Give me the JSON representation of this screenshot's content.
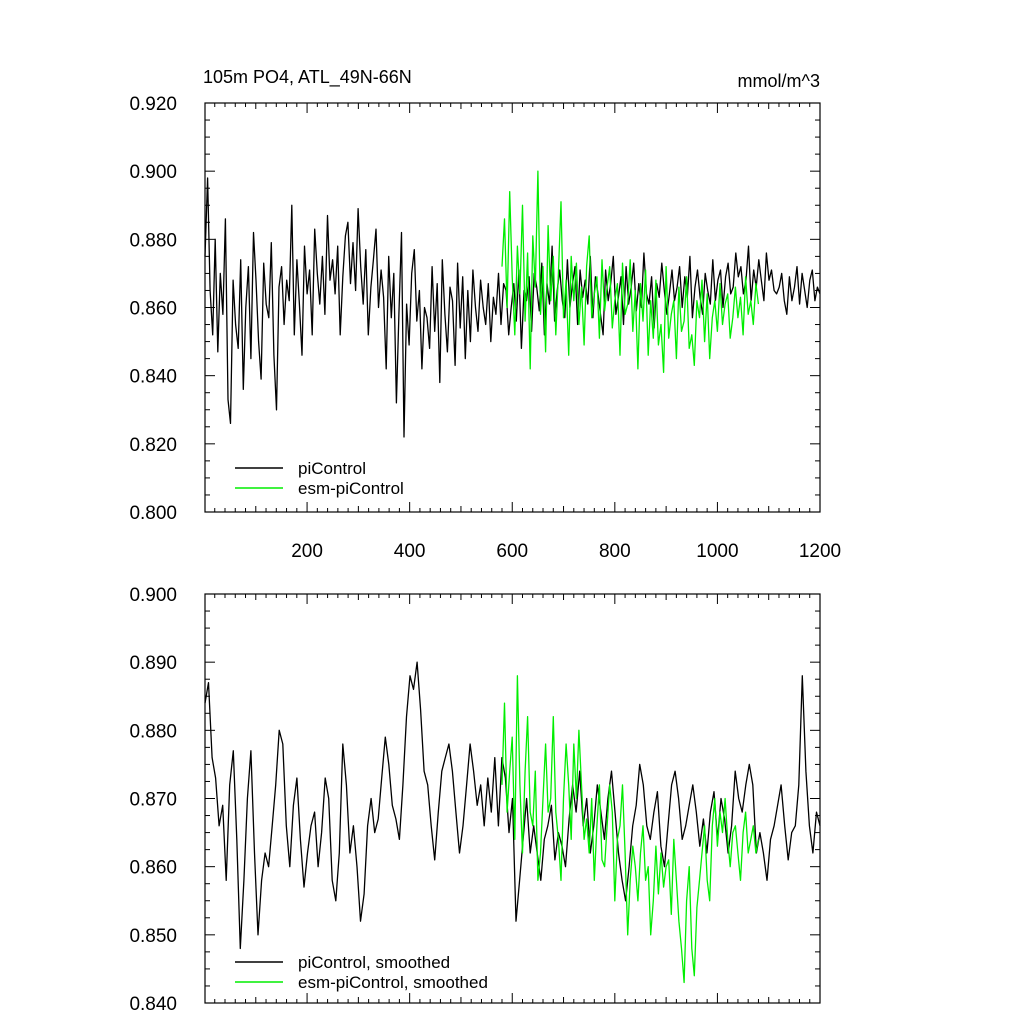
{
  "chart_data": [
    {
      "type": "line",
      "title": "105m PO4, ATL_49N-66N",
      "units": "mmol/m^3",
      "xlim": [
        1,
        1200
      ],
      "ylim": [
        0.8,
        0.92
      ],
      "xticks": [
        200,
        400,
        600,
        800,
        1000,
        1200
      ],
      "xtick_labels": [
        "200",
        "400",
        "600",
        "800",
        "1000",
        "1200"
      ],
      "yticks": [
        0.8,
        0.82,
        0.84,
        0.86,
        0.88,
        0.9,
        0.92
      ],
      "ytick_labels": [
        "0.800",
        "0.820",
        "0.840",
        "0.860",
        "0.880",
        "0.900",
        "0.920"
      ],
      "grid": false,
      "legend_position": "bottom-left",
      "series": [
        {
          "name": "piControl",
          "color": "#000000",
          "x_start": 1,
          "x_end": 1200,
          "values": [
            0.875,
            0.898,
            0.865,
            0.852,
            0.88,
            0.847,
            0.87,
            0.858,
            0.886,
            0.833,
            0.826,
            0.868,
            0.855,
            0.848,
            0.874,
            0.836,
            0.86,
            0.872,
            0.845,
            0.882,
            0.868,
            0.85,
            0.839,
            0.873,
            0.861,
            0.857,
            0.879,
            0.846,
            0.83,
            0.866,
            0.872,
            0.855,
            0.868,
            0.862,
            0.89,
            0.852,
            0.874,
            0.861,
            0.846,
            0.878,
            0.864,
            0.871,
            0.852,
            0.883,
            0.87,
            0.861,
            0.875,
            0.858,
            0.887,
            0.868,
            0.874,
            0.864,
            0.878,
            0.852,
            0.869,
            0.881,
            0.885,
            0.867,
            0.879,
            0.865,
            0.889,
            0.872,
            0.861,
            0.877,
            0.852,
            0.866,
            0.874,
            0.883,
            0.86,
            0.871,
            0.863,
            0.842,
            0.875,
            0.857,
            0.87,
            0.832,
            0.858,
            0.882,
            0.822,
            0.861,
            0.849,
            0.87,
            0.877,
            0.856,
            0.865,
            0.842,
            0.86,
            0.857,
            0.848,
            0.872,
            0.853,
            0.867,
            0.838,
            0.874,
            0.858,
            0.847,
            0.866,
            0.862,
            0.843,
            0.873,
            0.854,
            0.869,
            0.845,
            0.865,
            0.85,
            0.871,
            0.86,
            0.853,
            0.868,
            0.86,
            0.855,
            0.867,
            0.85,
            0.863,
            0.858,
            0.87,
            0.855,
            0.867,
            0.865,
            0.852,
            0.86,
            0.867,
            0.856,
            0.871,
            0.848,
            0.865,
            0.862,
            0.869,
            0.853,
            0.87,
            0.866,
            0.859,
            0.873,
            0.852,
            0.867,
            0.861,
            0.878,
            0.856,
            0.865,
            0.871,
            0.862,
            0.857,
            0.874,
            0.86,
            0.867,
            0.872,
            0.855,
            0.871,
            0.863,
            0.868,
            0.861,
            0.875,
            0.857,
            0.869,
            0.864,
            0.858,
            0.852,
            0.871,
            0.862,
            0.867,
            0.875,
            0.858,
            0.863,
            0.869,
            0.855,
            0.872,
            0.861,
            0.866,
            0.873,
            0.859,
            0.867,
            0.86,
            0.876,
            0.864,
            0.861,
            0.869,
            0.854,
            0.867,
            0.863,
            0.873,
            0.865,
            0.858,
            0.864,
            0.871,
            0.862,
            0.866,
            0.872,
            0.86,
            0.869,
            0.863,
            0.875,
            0.857,
            0.866,
            0.871,
            0.863,
            0.858,
            0.87,
            0.865,
            0.861,
            0.874,
            0.862,
            0.868,
            0.871,
            0.86,
            0.869,
            0.873,
            0.864,
            0.866,
            0.876,
            0.869,
            0.872,
            0.864,
            0.868,
            0.878,
            0.862,
            0.871,
            0.866,
            0.874,
            0.868,
            0.862,
            0.876,
            0.868,
            0.871,
            0.865,
            0.864,
            0.866,
            0.87,
            0.862,
            0.858,
            0.869,
            0.862,
            0.866,
            0.872,
            0.861,
            0.87,
            0.865,
            0.86,
            0.868,
            0.871,
            0.862,
            0.866,
            0.864
          ]
        },
        {
          "name": "esm-piControl",
          "color": "#00ee00",
          "x_start": 580,
          "x_end": 1080,
          "values": [
            0.872,
            0.886,
            0.86,
            0.894,
            0.869,
            0.852,
            0.878,
            0.864,
            0.89,
            0.856,
            0.876,
            0.842,
            0.881,
            0.866,
            0.9,
            0.858,
            0.872,
            0.847,
            0.884,
            0.862,
            0.875,
            0.852,
            0.87,
            0.891,
            0.857,
            0.868,
            0.846,
            0.875,
            0.862,
            0.873,
            0.855,
            0.866,
            0.849,
            0.872,
            0.881,
            0.857,
            0.864,
            0.869,
            0.851,
            0.874,
            0.859,
            0.866,
            0.872,
            0.854,
            0.862,
            0.867,
            0.846,
            0.873,
            0.858,
            0.861,
            0.874,
            0.853,
            0.865,
            0.842,
            0.867,
            0.856,
            0.871,
            0.846,
            0.862,
            0.851,
            0.868,
            0.849,
            0.855,
            0.841,
            0.872,
            0.851,
            0.858,
            0.862,
            0.845,
            0.866,
            0.853,
            0.856,
            0.869,
            0.848,
            0.852,
            0.843,
            0.862,
            0.857,
            0.868,
            0.85,
            0.864,
            0.845,
            0.857,
            0.862,
            0.853,
            0.867,
            0.855,
            0.861,
            0.864,
            0.851,
            0.857,
            0.866,
            0.857,
            0.863,
            0.852,
            0.869,
            0.858,
            0.862,
            0.855,
            0.867,
            0.861
          ]
        }
      ]
    },
    {
      "type": "line",
      "xlim": [
        1,
        1200
      ],
      "ylim": [
        0.84,
        0.9
      ],
      "xticks": [
        200,
        400,
        600,
        800,
        1000,
        1200
      ],
      "yticks": [
        0.84,
        0.85,
        0.86,
        0.87,
        0.88,
        0.89,
        0.9
      ],
      "ytick_labels": [
        "0.840",
        "0.850",
        "0.860",
        "0.870",
        "0.880",
        "0.890",
        "0.900"
      ],
      "grid": false,
      "legend_position": "bottom-left",
      "series": [
        {
          "name": "piControl, smoothed",
          "color": "#000000",
          "x_start": 1,
          "x_end": 1200,
          "values": [
            0.884,
            0.887,
            0.876,
            0.873,
            0.866,
            0.869,
            0.858,
            0.872,
            0.877,
            0.864,
            0.848,
            0.858,
            0.87,
            0.877,
            0.862,
            0.85,
            0.858,
            0.862,
            0.86,
            0.866,
            0.872,
            0.88,
            0.878,
            0.866,
            0.86,
            0.869,
            0.873,
            0.864,
            0.857,
            0.862,
            0.866,
            0.868,
            0.86,
            0.865,
            0.873,
            0.87,
            0.858,
            0.855,
            0.862,
            0.878,
            0.872,
            0.862,
            0.866,
            0.86,
            0.852,
            0.856,
            0.866,
            0.87,
            0.865,
            0.867,
            0.873,
            0.879,
            0.875,
            0.869,
            0.867,
            0.864,
            0.872,
            0.882,
            0.888,
            0.886,
            0.89,
            0.883,
            0.874,
            0.872,
            0.866,
            0.861,
            0.868,
            0.874,
            0.876,
            0.878,
            0.874,
            0.868,
            0.862,
            0.866,
            0.872,
            0.878,
            0.874,
            0.869,
            0.872,
            0.866,
            0.873,
            0.868,
            0.876,
            0.866,
            0.876,
            0.873,
            0.865,
            0.87,
            0.852,
            0.858,
            0.864,
            0.87,
            0.862,
            0.866,
            0.862,
            0.858,
            0.864,
            0.866,
            0.869,
            0.861,
            0.865,
            0.863,
            0.86,
            0.867,
            0.872,
            0.868,
            0.874,
            0.866,
            0.87,
            0.862,
            0.866,
            0.872,
            0.868,
            0.864,
            0.87,
            0.874,
            0.868,
            0.862,
            0.858,
            0.855,
            0.86,
            0.866,
            0.869,
            0.875,
            0.872,
            0.866,
            0.864,
            0.868,
            0.871,
            0.863,
            0.86,
            0.866,
            0.872,
            0.874,
            0.87,
            0.864,
            0.866,
            0.869,
            0.872,
            0.868,
            0.863,
            0.867,
            0.862,
            0.868,
            0.871,
            0.864,
            0.87,
            0.867,
            0.862,
            0.866,
            0.874,
            0.87,
            0.868,
            0.872,
            0.875,
            0.872,
            0.862,
            0.865,
            0.862,
            0.858,
            0.864,
            0.866,
            0.869,
            0.872,
            0.866,
            0.861,
            0.865,
            0.866,
            0.872,
            0.888,
            0.874,
            0.866,
            0.862,
            0.868,
            0.866
          ]
        },
        {
          "name": "esm-piControl, smoothed",
          "color": "#00ee00",
          "x_start": 580,
          "x_end": 1080,
          "values": [
            0.872,
            0.884,
            0.868,
            0.874,
            0.879,
            0.864,
            0.888,
            0.872,
            0.862,
            0.874,
            0.882,
            0.868,
            0.866,
            0.874,
            0.858,
            0.862,
            0.87,
            0.878,
            0.868,
            0.87,
            0.882,
            0.868,
            0.864,
            0.858,
            0.87,
            0.878,
            0.872,
            0.864,
            0.878,
            0.87,
            0.88,
            0.872,
            0.864,
            0.867,
            0.862,
            0.87,
            0.858,
            0.866,
            0.872,
            0.861,
            0.86,
            0.866,
            0.872,
            0.868,
            0.855,
            0.864,
            0.866,
            0.872,
            0.862,
            0.85,
            0.858,
            0.863,
            0.86,
            0.855,
            0.862,
            0.866,
            0.858,
            0.86,
            0.85,
            0.855,
            0.863,
            0.856,
            0.862,
            0.857,
            0.86,
            0.861,
            0.853,
            0.864,
            0.858,
            0.852,
            0.848,
            0.843,
            0.855,
            0.86,
            0.848,
            0.844,
            0.854,
            0.858,
            0.862,
            0.866,
            0.858,
            0.855,
            0.866,
            0.87,
            0.863,
            0.868,
            0.865,
            0.87,
            0.864,
            0.86,
            0.865,
            0.866,
            0.862,
            0.858,
            0.865,
            0.868,
            0.862,
            0.864,
            0.866,
            0.862,
            0.864
          ]
        }
      ]
    }
  ]
}
